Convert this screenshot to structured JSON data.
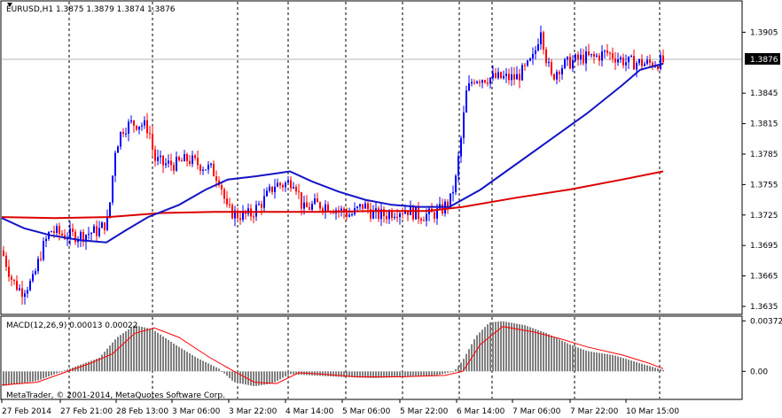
{
  "chart": {
    "symbol_header": "EURUSD,H1  1.3875 1.3879 1.3874 1.3876",
    "current_price": "1.3876",
    "copyright": "MetaTrader, © 2001-2014, MetaQuotes Software Corp.",
    "colors": {
      "background": "#ffffff",
      "candle_bull": "#0000ff",
      "candle_bear": "#ff0000",
      "ma_fast": "#1414c8",
      "ma_slow": "#dc0000",
      "macd_hist": "#808080",
      "macd_signal": "#ff0000",
      "price_tag_bg": "#000000"
    }
  },
  "chart_data": [
    {
      "type": "candlestick",
      "title": "EURUSD,H1",
      "y_ticks": [
        "1.3905",
        "1.3876",
        "1.3845",
        "1.3815",
        "1.3785",
        "1.3755",
        "1.3725",
        "1.3695",
        "1.3665",
        "1.3635"
      ],
      "x_ticks": [
        "27 Feb 2014",
        "27 Feb 21:00",
        "28 Feb 13:00",
        "3 Mar 06:00",
        "3 Mar 22:00",
        "4 Mar 14:00",
        "5 Mar 06:00",
        "5 Mar 22:00",
        "6 Mar 14:00",
        "7 Mar 06:00",
        "7 Mar 22:00",
        "10 Mar 15:00"
      ],
      "ylim": [
        1.3628,
        1.3935
      ],
      "grid": "vertical dotted at date ticks",
      "close_path": [
        [
          0,
          1.369
        ],
        [
          12,
          1.366
        ],
        [
          22,
          1.365
        ],
        [
          35,
          1.366
        ],
        [
          45,
          1.369
        ],
        [
          55,
          1.371
        ],
        [
          70,
          1.3705
        ],
        [
          90,
          1.3705
        ],
        [
          110,
          1.371
        ],
        [
          120,
          1.372
        ],
        [
          128,
          1.379
        ],
        [
          136,
          1.381
        ],
        [
          146,
          1.3815
        ],
        [
          156,
          1.3815
        ],
        [
          166,
          1.381
        ],
        [
          172,
          1.378
        ],
        [
          182,
          1.3775
        ],
        [
          196,
          1.3775
        ],
        [
          210,
          1.378
        ],
        [
          222,
          1.3775
        ],
        [
          236,
          1.377
        ],
        [
          246,
          1.376
        ],
        [
          254,
          1.373
        ],
        [
          266,
          1.3725
        ],
        [
          280,
          1.3725
        ],
        [
          296,
          1.374
        ],
        [
          308,
          1.3755
        ],
        [
          318,
          1.3755
        ],
        [
          330,
          1.376
        ],
        [
          340,
          1.373
        ],
        [
          352,
          1.3735
        ],
        [
          366,
          1.3735
        ],
        [
          380,
          1.373
        ],
        [
          394,
          1.3725
        ],
        [
          408,
          1.3735
        ],
        [
          420,
          1.3725
        ],
        [
          432,
          1.3725
        ],
        [
          446,
          1.373
        ],
        [
          458,
          1.373
        ],
        [
          470,
          1.3725
        ],
        [
          484,
          1.3725
        ],
        [
          496,
          1.373
        ],
        [
          506,
          1.374
        ],
        [
          512,
          1.376
        ],
        [
          518,
          1.38
        ],
        [
          524,
          1.3845
        ],
        [
          532,
          1.386
        ],
        [
          544,
          1.386
        ],
        [
          556,
          1.386
        ],
        [
          568,
          1.386
        ],
        [
          580,
          1.386
        ],
        [
          592,
          1.387
        ],
        [
          600,
          1.388
        ],
        [
          608,
          1.391
        ],
        [
          614,
          1.388
        ],
        [
          620,
          1.386
        ],
        [
          628,
          1.387
        ],
        [
          640,
          1.3875
        ],
        [
          656,
          1.388
        ],
        [
          668,
          1.388
        ],
        [
          682,
          1.3885
        ],
        [
          694,
          1.388
        ],
        [
          706,
          1.3875
        ],
        [
          716,
          1.3875
        ],
        [
          728,
          1.3874
        ],
        [
          746,
          1.3876
        ]
      ],
      "ma_fast": [
        [
          0,
          1.3722
        ],
        [
          25,
          1.3712
        ],
        [
          55,
          1.3705
        ],
        [
          90,
          1.37
        ],
        [
          118,
          1.3698
        ],
        [
          140,
          1.371
        ],
        [
          165,
          1.3723
        ],
        [
          200,
          1.3735
        ],
        [
          230,
          1.375
        ],
        [
          255,
          1.376
        ],
        [
          285,
          1.3763
        ],
        [
          310,
          1.3766
        ],
        [
          325,
          1.3768
        ],
        [
          350,
          1.3758
        ],
        [
          380,
          1.3748
        ],
        [
          410,
          1.374
        ],
        [
          440,
          1.3735
        ],
        [
          470,
          1.3733
        ],
        [
          505,
          1.3733
        ],
        [
          540,
          1.375
        ],
        [
          580,
          1.3775
        ],
        [
          620,
          1.38
        ],
        [
          660,
          1.3825
        ],
        [
          700,
          1.3853
        ],
        [
          720,
          1.3868
        ],
        [
          746,
          1.3874
        ]
      ],
      "ma_slow": [
        [
          0,
          1.3723
        ],
        [
          60,
          1.3722
        ],
        [
          120,
          1.3723
        ],
        [
          180,
          1.3727
        ],
        [
          240,
          1.3728
        ],
        [
          300,
          1.3728
        ],
        [
          360,
          1.3728
        ],
        [
          420,
          1.3729
        ],
        [
          480,
          1.3729
        ],
        [
          520,
          1.3733
        ],
        [
          580,
          1.3742
        ],
        [
          640,
          1.375
        ],
        [
          700,
          1.376
        ],
        [
          746,
          1.3768
        ]
      ]
    },
    {
      "type": "bar",
      "title": "MACD(12,26,9) 0.00013 0.00022",
      "y_ticks": [
        "0.00372",
        "0.00"
      ],
      "ylim": [
        -0.002,
        0.004
      ],
      "series": [
        {
          "kind": "histogram",
          "points": [
            [
              0,
              -0.0011
            ],
            [
              40,
              -0.0007
            ],
            [
              60,
              -0.0002
            ],
            [
              85,
              0.0004
            ],
            [
              110,
              0.001
            ],
            [
              130,
              0.0025
            ],
            [
              150,
              0.0034
            ],
            [
              170,
              0.0031
            ],
            [
              195,
              0.002
            ],
            [
              220,
              0.001
            ],
            [
              245,
              0.0002
            ],
            [
              262,
              -0.0008
            ],
            [
              285,
              -0.0011
            ],
            [
              305,
              -0.0009
            ],
            [
              325,
              -0.0002
            ],
            [
              350,
              -0.0003
            ],
            [
              380,
              -0.0004
            ],
            [
              420,
              -0.0005
            ],
            [
              460,
              -0.0004
            ],
            [
              490,
              -0.0003
            ],
            [
              510,
              0.0
            ],
            [
              520,
              0.0008
            ],
            [
              535,
              0.0026
            ],
            [
              550,
              0.0036
            ],
            [
              565,
              0.0037
            ],
            [
              590,
              0.0034
            ],
            [
              615,
              0.0028
            ],
            [
              640,
              0.002
            ],
            [
              660,
              0.0015
            ],
            [
              690,
              0.0012
            ],
            [
              720,
              0.0006
            ],
            [
              746,
              0.0001
            ]
          ]
        },
        {
          "kind": "signal",
          "points": [
            [
              0,
              -0.001
            ],
            [
              40,
              -0.0008
            ],
            [
              70,
              -0.0001
            ],
            [
              100,
              0.0006
            ],
            [
              125,
              0.0013
            ],
            [
              150,
              0.0028
            ],
            [
              172,
              0.0032
            ],
            [
              200,
              0.0025
            ],
            [
              235,
              0.001
            ],
            [
              262,
              0.0
            ],
            [
              285,
              -0.0008
            ],
            [
              310,
              -0.0009
            ],
            [
              335,
              -0.0001
            ],
            [
              360,
              -0.0002
            ],
            [
              400,
              -0.0004
            ],
            [
              450,
              -0.0004
            ],
            [
              500,
              -0.0003
            ],
            [
              520,
              0.0
            ],
            [
              540,
              0.002
            ],
            [
              565,
              0.0033
            ],
            [
              600,
              0.0029
            ],
            [
              630,
              0.0024
            ],
            [
              660,
              0.0018
            ],
            [
              700,
              0.0012
            ],
            [
              730,
              0.0006
            ],
            [
              746,
              0.0002
            ]
          ]
        }
      ]
    }
  ]
}
